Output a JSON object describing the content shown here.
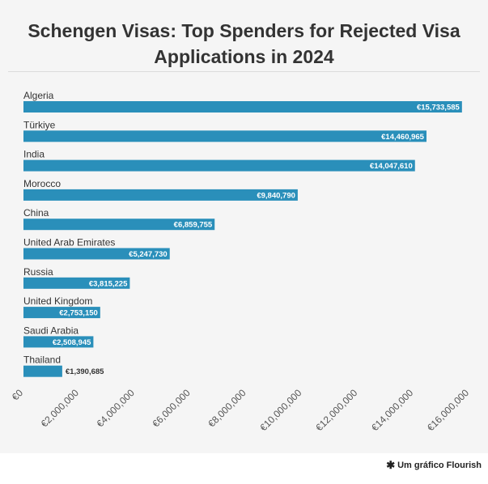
{
  "chart_data": {
    "type": "bar",
    "orientation": "horizontal",
    "title": "Schengen Visas: Top Spenders for Rejected Visa Applications in 2024",
    "categories": [
      "Algeria",
      "Türkiye",
      "India",
      "Morocco",
      "China",
      "United Arab Emirates",
      "Russia",
      "United Kingdom",
      "Saudi Arabia",
      "Thailand"
    ],
    "values": [
      15733585,
      14460965,
      14047610,
      9840790,
      6859755,
      5247730,
      3815225,
      2753150,
      2508945,
      1390685
    ],
    "value_labels": [
      "€15,733,585",
      "€14,460,965",
      "€14,047,610",
      "€9,840,790",
      "€6,859,755",
      "€5,247,730",
      "€3,815,225",
      "€2,753,150",
      "€2,508,945",
      "€1,390,685"
    ],
    "xlim": [
      0,
      16000000
    ],
    "x_ticks": [
      0,
      2000000,
      4000000,
      6000000,
      8000000,
      10000000,
      12000000,
      14000000,
      16000000
    ],
    "x_tick_labels": [
      "€0",
      "€2,000,000",
      "€4,000,000",
      "€6,000,000",
      "€8,000,000",
      "€10,000,000",
      "€12,000,000",
      "€14,000,000",
      "€16,000,000"
    ],
    "xlabel": "",
    "ylabel": "",
    "grid": false,
    "colors": {
      "bar": "#2a8fba",
      "label_inside": "#ffffff",
      "label_outside": "#333333",
      "background": "#f5f5f5"
    }
  },
  "footer": {
    "credit_icon": "flourish-asterisk-icon",
    "credit_text": "Um gráfico Flourish"
  }
}
